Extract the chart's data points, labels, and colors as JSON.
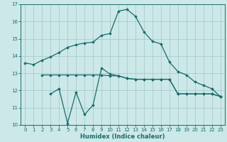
{
  "xlabel": "Humidex (Indice chaleur)",
  "bg_color": "#cce8e8",
  "grid_color": "#aacccc",
  "line_color": "#1a6b6b",
  "xlim": [
    -0.5,
    23.5
  ],
  "ylim": [
    10,
    17
  ],
  "yticks": [
    10,
    11,
    12,
    13,
    14,
    15,
    16,
    17
  ],
  "xticks": [
    0,
    1,
    2,
    3,
    4,
    5,
    6,
    7,
    8,
    9,
    10,
    11,
    12,
    13,
    14,
    15,
    16,
    17,
    18,
    19,
    20,
    21,
    22,
    23
  ],
  "line1_x": [
    0,
    1,
    2,
    3,
    4,
    5,
    6,
    7,
    8,
    9,
    10,
    11,
    12,
    13,
    14,
    15,
    16,
    17,
    18,
    19,
    20,
    21,
    22,
    23
  ],
  "line1_y": [
    13.6,
    13.5,
    13.75,
    13.95,
    14.2,
    14.5,
    14.65,
    14.75,
    14.8,
    15.2,
    15.3,
    16.6,
    16.7,
    16.3,
    15.4,
    14.85,
    14.7,
    13.65,
    13.1,
    12.9,
    12.5,
    12.3,
    12.1,
    11.65
  ],
  "line2_x": [
    2,
    3,
    4,
    5,
    6,
    7,
    8,
    9,
    10,
    11,
    12,
    13,
    14,
    15,
    16,
    17,
    18,
    19,
    20,
    21,
    22,
    23
  ],
  "line2_y": [
    12.9,
    12.9,
    12.9,
    12.9,
    12.9,
    12.9,
    12.9,
    12.9,
    12.85,
    12.85,
    12.7,
    12.65,
    12.65,
    12.65,
    12.65,
    12.65,
    11.8,
    11.8,
    11.8,
    11.8,
    11.8,
    11.65
  ],
  "line3_x": [
    3,
    4,
    5,
    6,
    7,
    8,
    9,
    10,
    11,
    12,
    13,
    14,
    15,
    16,
    17,
    18,
    19,
    20,
    21,
    22,
    23
  ],
  "line3_y": [
    11.8,
    12.1,
    10.1,
    11.9,
    10.6,
    11.15,
    13.3,
    12.95,
    12.85,
    12.7,
    12.65,
    12.65,
    12.65,
    12.65,
    12.65,
    11.8,
    11.8,
    11.8,
    11.8,
    11.8,
    11.65
  ]
}
